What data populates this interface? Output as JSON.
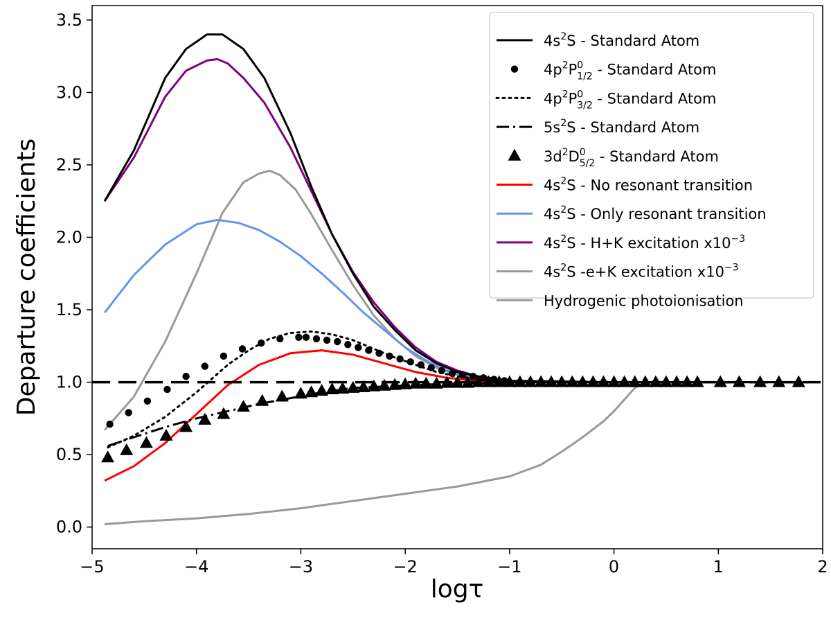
{
  "chart_data": {
    "type": "line",
    "title": "",
    "xlabel": "logτ",
    "ylabel": "Departure coefficients",
    "xlim": [
      -5,
      2
    ],
    "ylim": [
      -0.15,
      3.6
    ],
    "xticks": [
      -5,
      -4,
      -3,
      -2,
      -1,
      0,
      1,
      2
    ],
    "xtick_labels": [
      "−5",
      "−4",
      "−3",
      "−2",
      "−1",
      "0",
      "1",
      "2"
    ],
    "yticks": [
      0.0,
      0.5,
      1.0,
      1.5,
      2.0,
      2.5,
      3.0,
      3.5
    ],
    "ytick_labels": [
      "0.0",
      "0.5",
      "1.0",
      "1.5",
      "2.0",
      "2.5",
      "3.0",
      "3.5"
    ],
    "reference_line": {
      "y": 1.0,
      "style": "dashed",
      "color": "#000000"
    },
    "legend_position": "top-right",
    "series": [
      {
        "name": "4s²S - Standard Atom",
        "legend_main": "4s",
        "legend_sup": "2",
        "legend_term": "S",
        "legend_sub": "",
        "legend_tail": " - Standard Atom",
        "style": "solid",
        "color": "#000000",
        "x": [
          -4.88,
          -4.6,
          -4.3,
          -4.1,
          -3.9,
          -3.75,
          -3.55,
          -3.35,
          -3.1,
          -2.9,
          -2.7,
          -2.5,
          -2.3,
          -2.1,
          -1.9,
          -1.7,
          -1.5,
          -1.3,
          -1.1,
          -1.0,
          0.0,
          1.0,
          1.8
        ],
        "y": [
          2.25,
          2.6,
          3.1,
          3.3,
          3.4,
          3.4,
          3.3,
          3.1,
          2.72,
          2.35,
          2.02,
          1.75,
          1.52,
          1.36,
          1.22,
          1.13,
          1.07,
          1.04,
          1.02,
          1.01,
          1.0,
          1.0,
          1.0
        ]
      },
      {
        "name": "4p²P⁰₁/₂ - Standard Atom",
        "legend_main": "4p",
        "legend_sup": "2",
        "legend_term": "P",
        "legend_sub": "1/2",
        "legend_tail": " - Standard Atom",
        "style": "circles",
        "color": "#000000",
        "x": [
          -4.83,
          -4.65,
          -4.47,
          -4.28,
          -4.1,
          -3.92,
          -3.74,
          -3.56,
          -3.38,
          -3.2,
          -3.02,
          -2.95,
          -2.85,
          -2.75,
          -2.65,
          -2.55,
          -2.45,
          -2.35,
          -2.25,
          -2.15,
          -2.05,
          -1.95,
          -1.85,
          -1.75,
          -1.65,
          -1.55,
          -1.45,
          -1.35,
          -1.25,
          -1.15,
          -1.05
        ],
        "y": [
          0.71,
          0.79,
          0.87,
          0.95,
          1.04,
          1.11,
          1.18,
          1.23,
          1.27,
          1.3,
          1.31,
          1.31,
          1.3,
          1.29,
          1.28,
          1.26,
          1.24,
          1.22,
          1.2,
          1.18,
          1.16,
          1.14,
          1.12,
          1.1,
          1.08,
          1.06,
          1.05,
          1.04,
          1.03,
          1.02,
          1.01
        ]
      },
      {
        "name": "4p²P⁰₃/₂ - Standard Atom",
        "legend_main": "4p",
        "legend_sup": "2",
        "legend_term": "P",
        "legend_sub": "3/2",
        "legend_tail": " - Standard Atom",
        "style": "dotted",
        "color": "#000000",
        "x": [
          -4.85,
          -4.6,
          -4.3,
          -4.0,
          -3.7,
          -3.5,
          -3.3,
          -3.1,
          -2.9,
          -2.7,
          -2.5,
          -2.3,
          -2.1,
          -1.9,
          -1.7,
          -1.5,
          -1.3,
          -1.1,
          -0.9,
          0.0
        ],
        "y": [
          0.55,
          0.63,
          0.76,
          0.93,
          1.12,
          1.22,
          1.3,
          1.34,
          1.35,
          1.33,
          1.29,
          1.23,
          1.17,
          1.12,
          1.07,
          1.04,
          1.02,
          1.01,
          1.0,
          1.0
        ]
      },
      {
        "name": "5s²S - Standard Atom",
        "legend_main": "5s",
        "legend_sup": "2",
        "legend_term": "S",
        "legend_sub": "",
        "legend_tail": " - Standard Atom",
        "style": "dashdot",
        "color": "#000000",
        "x": [
          -4.85,
          -4.6,
          -4.3,
          -4.0,
          -3.7,
          -3.4,
          -3.1,
          -2.8,
          -2.5,
          -2.2,
          -1.9,
          -1.6,
          -1.3,
          -1.0,
          0.0,
          1.0,
          1.8
        ],
        "y": [
          0.56,
          0.62,
          0.69,
          0.75,
          0.8,
          0.85,
          0.89,
          0.93,
          0.96,
          0.97,
          0.98,
          0.99,
          0.995,
          1.0,
          1.0,
          1.0,
          1.0
        ]
      },
      {
        "name": "3d²D⁰₅/₂ - Standard Atom",
        "legend_main": "3d",
        "legend_sup": "2",
        "legend_term": "D",
        "legend_sub": "5/2",
        "legend_tail": " - Standard Atom",
        "style": "triangles",
        "color": "#000000",
        "x": [
          -4.85,
          -4.67,
          -4.48,
          -4.29,
          -4.1,
          -3.92,
          -3.74,
          -3.55,
          -3.37,
          -3.18,
          -3.0,
          -2.9,
          -2.8,
          -2.7,
          -2.6,
          -2.5,
          -2.4,
          -2.3,
          -2.2,
          -2.1,
          -2.0,
          -1.9,
          -1.8,
          -1.7,
          -1.6,
          -1.5,
          -1.4,
          -1.3,
          -1.2,
          -1.1,
          -1.0,
          -0.9,
          -0.8,
          -0.7,
          -0.6,
          -0.5,
          -0.4,
          -0.3,
          -0.2,
          -0.1,
          0.0,
          0.1,
          0.2,
          0.3,
          0.4,
          0.5,
          0.6,
          0.7,
          0.8,
          1.02,
          1.2,
          1.4,
          1.58,
          1.77
        ],
        "y": [
          0.48,
          0.53,
          0.58,
          0.63,
          0.69,
          0.74,
          0.78,
          0.83,
          0.87,
          0.9,
          0.92,
          0.93,
          0.94,
          0.95,
          0.955,
          0.96,
          0.965,
          0.97,
          0.975,
          0.98,
          0.985,
          0.99,
          0.99,
          0.99,
          0.995,
          0.995,
          0.995,
          1.0,
          1.0,
          1.0,
          1.0,
          1.0,
          1.0,
          1.0,
          1.0,
          1.0,
          1.0,
          1.0,
          1.0,
          1.0,
          1.0,
          1.0,
          1.0,
          1.0,
          1.0,
          1.0,
          1.0,
          1.0,
          1.0,
          1.0,
          1.0,
          1.0,
          1.0,
          1.0
        ]
      },
      {
        "name": "4s²S - No resonant transition",
        "legend_main": "4s",
        "legend_sup": "2",
        "legend_term": "S",
        "legend_sub": "",
        "legend_tail": " - No resonant transition",
        "style": "solid",
        "color": "#ff0000",
        "x": [
          -4.88,
          -4.6,
          -4.3,
          -4.0,
          -3.7,
          -3.4,
          -3.1,
          -2.8,
          -2.5,
          -2.2,
          -1.9,
          -1.6,
          -1.3,
          -1.0,
          -0.7
        ],
        "y": [
          0.32,
          0.42,
          0.58,
          0.78,
          0.98,
          1.12,
          1.2,
          1.22,
          1.19,
          1.13,
          1.07,
          1.03,
          1.01,
          1.0,
          1.0
        ]
      },
      {
        "name": "4s²S - Only resonant transition",
        "legend_main": "4s",
        "legend_sup": "2",
        "legend_term": "S",
        "legend_sub": "",
        "legend_tail": " - Only resonant transition",
        "style": "solid",
        "color": "#6495ed",
        "x": [
          -4.88,
          -4.6,
          -4.3,
          -4.0,
          -3.8,
          -3.6,
          -3.4,
          -3.2,
          -3.0,
          -2.8,
          -2.6,
          -2.4,
          -2.2,
          -2.0,
          -1.8,
          -1.6,
          -1.4,
          -1.2,
          -1.0,
          -0.8
        ],
        "y": [
          1.48,
          1.74,
          1.95,
          2.09,
          2.12,
          2.1,
          2.05,
          1.97,
          1.87,
          1.75,
          1.62,
          1.48,
          1.36,
          1.24,
          1.15,
          1.08,
          1.04,
          1.02,
          1.01,
          1.0
        ]
      },
      {
        "name": "4s²S - H+K excitation x10⁻³",
        "legend_main": "4s",
        "legend_sup": "2",
        "legend_term": "S",
        "legend_sub": "",
        "legend_tail": " - H+K excitation x10",
        "legend_exp": "−3",
        "style": "solid",
        "color": "#800080",
        "x": [
          -4.88,
          -4.6,
          -4.3,
          -4.1,
          -3.9,
          -3.8,
          -3.7,
          -3.55,
          -3.35,
          -3.1,
          -2.9,
          -2.7,
          -2.5,
          -2.3,
          -2.1,
          -1.9,
          -1.7,
          -1.5,
          -1.3,
          -1.1,
          -1.0,
          -0.9
        ],
        "y": [
          2.25,
          2.55,
          2.97,
          3.15,
          3.22,
          3.23,
          3.2,
          3.1,
          2.93,
          2.62,
          2.32,
          2.02,
          1.76,
          1.55,
          1.38,
          1.24,
          1.14,
          1.08,
          1.04,
          1.02,
          1.01,
          1.0
        ]
      },
      {
        "name": "4s²S -e+K excitation x10⁻³",
        "legend_main": "4s",
        "legend_sup": "2",
        "legend_term": "S",
        "legend_sub": "",
        "legend_tail": " -e+K excitation x10",
        "legend_exp": "−3",
        "style": "solid",
        "color": "#999999",
        "x": [
          -4.88,
          -4.6,
          -4.3,
          -4.0,
          -3.75,
          -3.55,
          -3.4,
          -3.3,
          -3.2,
          -3.05,
          -2.9,
          -2.7,
          -2.5,
          -2.3,
          -2.1,
          -1.9,
          -1.7,
          -1.5,
          -1.3,
          -1.1,
          -0.9,
          -0.7
        ],
        "y": [
          0.67,
          0.9,
          1.28,
          1.75,
          2.17,
          2.38,
          2.44,
          2.46,
          2.43,
          2.33,
          2.16,
          1.91,
          1.67,
          1.46,
          1.3,
          1.18,
          1.1,
          1.05,
          1.02,
          1.01,
          1.0,
          1.0
        ]
      },
      {
        "name": "Hydrogenic photoionisation",
        "legend_main": "Hydrogenic photoionisation",
        "legend_sup": "",
        "legend_term": "",
        "legend_sub": "",
        "legend_tail": "",
        "style": "solid",
        "color": "#999999",
        "x": [
          -4.88,
          -4.5,
          -4.0,
          -3.5,
          -3.0,
          -2.5,
          -2.0,
          -1.5,
          -1.0,
          -0.7,
          -0.5,
          -0.3,
          -0.1,
          0.0,
          0.1,
          0.2,
          0.3,
          0.5,
          1.0,
          1.8
        ],
        "y": [
          0.02,
          0.04,
          0.06,
          0.09,
          0.13,
          0.18,
          0.23,
          0.28,
          0.35,
          0.43,
          0.52,
          0.62,
          0.73,
          0.8,
          0.88,
          0.96,
          1.0,
          1.0,
          1.0,
          1.0
        ]
      }
    ]
  }
}
